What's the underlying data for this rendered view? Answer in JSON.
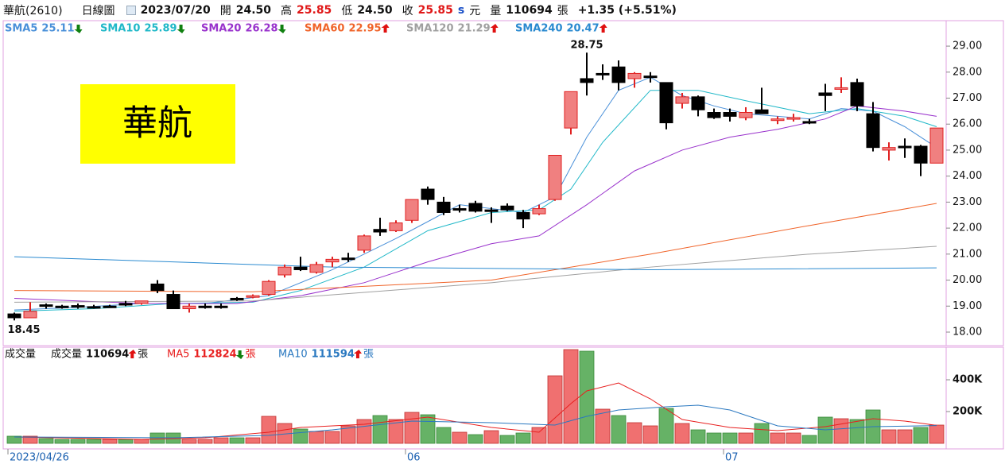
{
  "header": {
    "name": "華航(2610)",
    "period": "日線圖",
    "date": "2023/07/20",
    "open_label": "開",
    "open": "24.50",
    "high_label": "高",
    "high": "25.85",
    "low_label": "低",
    "low": "24.50",
    "close_label": "收",
    "close": "25.85",
    "s": "s",
    "currency": "元",
    "volume_label": "量",
    "volume": "110694",
    "volume_unit": "張",
    "change": "+1.35 (+5.51%)"
  },
  "badge": "華航",
  "chart_data": [
    {
      "type": "candlestick",
      "open": [
        18.7,
        18.55,
        19.05,
        19.0,
        19.02,
        18.98,
        19.0,
        19.1,
        19.1,
        19.85,
        19.45,
        18.9,
        19.0,
        19.0,
        19.3,
        19.35,
        19.45,
        20.2,
        20.5,
        20.3,
        20.7,
        20.85,
        21.15,
        21.95,
        21.9,
        22.3,
        23.5,
        23.0,
        22.75,
        22.95,
        22.7,
        22.85,
        22.6,
        22.55,
        23.1,
        25.85,
        27.75,
        27.95,
        28.2,
        27.75,
        27.85,
        27.6,
        26.8,
        27.05,
        26.45,
        26.45,
        26.25,
        26.55,
        26.15,
        26.2,
        26.1,
        27.2,
        27.35,
        27.6,
        26.4,
        25.0,
        25.15,
        25.15,
        24.5
      ],
      "high": [
        18.75,
        19.15,
        19.1,
        19.05,
        19.1,
        19.05,
        19.05,
        19.2,
        19.2,
        20.0,
        19.6,
        19.1,
        19.1,
        19.1,
        19.35,
        19.45,
        20.0,
        20.6,
        20.9,
        20.7,
        20.9,
        21.05,
        21.75,
        22.4,
        22.3,
        23.1,
        23.6,
        23.2,
        22.9,
        23.05,
        22.8,
        22.95,
        22.7,
        22.9,
        24.8,
        27.25,
        28.75,
        28.3,
        28.45,
        28.0,
        28.0,
        27.6,
        27.2,
        27.1,
        26.6,
        26.6,
        26.65,
        27.4,
        26.3,
        26.4,
        26.2,
        27.55,
        27.8,
        27.75,
        26.85,
        25.3,
        25.45,
        25.2,
        25.85
      ],
      "low": [
        18.45,
        18.55,
        18.9,
        18.9,
        18.9,
        18.9,
        18.95,
        19.0,
        19.05,
        19.5,
        18.9,
        18.75,
        18.9,
        18.9,
        19.2,
        19.3,
        19.4,
        20.1,
        20.35,
        20.25,
        20.5,
        20.7,
        21.05,
        21.7,
        21.85,
        22.2,
        22.9,
        22.5,
        22.6,
        22.6,
        22.2,
        22.65,
        22.0,
        22.5,
        23.05,
        25.6,
        27.1,
        27.7,
        27.3,
        27.4,
        27.6,
        25.8,
        26.6,
        26.3,
        26.2,
        26.1,
        26.15,
        26.4,
        26.0,
        26.1,
        26.0,
        26.5,
        27.2,
        26.5,
        24.95,
        24.6,
        24.7,
        24.0,
        24.5
      ],
      "close": [
        18.55,
        18.8,
        19.0,
        18.98,
        19.0,
        18.97,
        19.0,
        19.05,
        19.2,
        19.6,
        18.9,
        19.0,
        19.0,
        19.0,
        19.25,
        19.4,
        19.95,
        20.5,
        20.4,
        20.6,
        20.8,
        20.85,
        21.7,
        21.85,
        22.2,
        23.1,
        23.1,
        22.6,
        22.75,
        22.65,
        22.7,
        22.7,
        22.35,
        22.75,
        24.8,
        27.25,
        27.6,
        27.95,
        27.6,
        27.95,
        27.85,
        26.05,
        27.05,
        26.55,
        26.25,
        26.3,
        26.45,
        26.4,
        26.2,
        26.25,
        26.05,
        27.1,
        27.4,
        26.7,
        25.1,
        25.1,
        25.15,
        24.5,
        25.85
      ],
      "up_color": "#f08080",
      "up_edge": "#e02020",
      "down_color": "#000000",
      "ylim": [
        17.48,
        29.98
      ],
      "yticks": [
        {
          "value": 18,
          "label": "18.00"
        },
        {
          "value": 19,
          "label": "19.00"
        },
        {
          "value": 20,
          "label": "20.00"
        },
        {
          "value": 21,
          "label": "21.00"
        },
        {
          "value": 22,
          "label": "22.00"
        },
        {
          "value": 23,
          "label": "23.00"
        },
        {
          "value": 24,
          "label": "24.00"
        },
        {
          "value": 25,
          "label": "25.00"
        },
        {
          "value": 26,
          "label": "26.00"
        },
        {
          "value": 27,
          "label": "27.00"
        },
        {
          "value": 28,
          "label": "28.00"
        },
        {
          "value": 29,
          "label": "29.00"
        }
      ],
      "annotations": [
        {
          "label": "28.75",
          "value": 28.75,
          "index": 36,
          "position": "above"
        },
        {
          "label": "18.45",
          "value": 18.45,
          "index": 0,
          "position": "below"
        }
      ],
      "series": [
        {
          "name": "SMA5",
          "last": 25.11,
          "trend": "down",
          "color": "#4a90d9",
          "x": [
            0,
            4,
            8,
            12,
            16,
            20,
            24,
            28,
            32,
            34,
            36,
            38,
            40,
            42,
            44,
            46,
            48,
            50,
            52,
            54,
            56,
            58
          ],
          "values": [
            18.85,
            18.95,
            19.1,
            19.1,
            19.4,
            20.4,
            21.6,
            22.9,
            22.6,
            23.2,
            25.5,
            27.3,
            27.8,
            27.1,
            26.7,
            26.4,
            26.3,
            26.2,
            26.6,
            26.5,
            25.9,
            25.1
          ]
        },
        {
          "name": "SMA10",
          "last": 25.89,
          "trend": "down",
          "color": "#20b8c8",
          "x": [
            0,
            5,
            10,
            15,
            18,
            22,
            26,
            30,
            33,
            35,
            37,
            40,
            43,
            46,
            50,
            53,
            56,
            58
          ],
          "values": [
            18.8,
            18.9,
            19.1,
            19.15,
            19.6,
            20.5,
            21.9,
            22.6,
            22.7,
            23.5,
            25.3,
            27.3,
            27.3,
            26.9,
            26.4,
            26.6,
            26.3,
            25.9
          ]
        },
        {
          "name": "SMA20",
          "last": 26.28,
          "trend": "down",
          "color": "#9932cc",
          "x": [
            0,
            8,
            14,
            18,
            22,
            26,
            30,
            33,
            36,
            39,
            42,
            45,
            48,
            51,
            53,
            56,
            58
          ],
          "values": [
            19.3,
            19.1,
            19.1,
            19.4,
            19.9,
            20.7,
            21.4,
            21.7,
            22.9,
            24.2,
            25.0,
            25.5,
            25.8,
            26.2,
            26.7,
            26.5,
            26.3
          ]
        },
        {
          "name": "SMA60",
          "last": 22.95,
          "trend": "up",
          "color": "#f0642a",
          "x": [
            0,
            15,
            30,
            40,
            50,
            58
          ],
          "values": [
            19.6,
            19.55,
            20.0,
            21.0,
            22.1,
            22.95
          ]
        },
        {
          "name": "SMA120",
          "last": 21.29,
          "trend": "up",
          "color": "#a0a0a0",
          "x": [
            0,
            15,
            30,
            40,
            50,
            58
          ],
          "values": [
            19.15,
            19.2,
            19.9,
            20.5,
            21.0,
            21.3
          ]
        },
        {
          "name": "SMA240",
          "last": 20.47,
          "trend": "up",
          "color": "#2a8ad0",
          "x": [
            0,
            20,
            40,
            58
          ],
          "values": [
            20.9,
            20.5,
            20.4,
            20.47
          ]
        }
      ]
    },
    {
      "type": "volume",
      "label": "成交量",
      "values": [
        45000,
        45000,
        30000,
        25000,
        25000,
        25000,
        25000,
        25000,
        25000,
        65000,
        65000,
        25000,
        25000,
        35000,
        35000,
        35000,
        170000,
        125000,
        90000,
        75000,
        75000,
        110000,
        150000,
        175000,
        150000,
        195000,
        180000,
        100000,
        70000,
        55000,
        80000,
        50000,
        65000,
        100000,
        425000,
        590000,
        580000,
        215000,
        175000,
        130000,
        110000,
        220000,
        125000,
        85000,
        65000,
        65000,
        65000,
        125000,
        65000,
        65000,
        50000,
        165000,
        155000,
        150000,
        210000,
        85000,
        85000,
        100000,
        115000
      ],
      "up_color": "#f07070",
      "up_edge": "#c03030",
      "down_color": "#66b266",
      "down_edge": "#3a8a3a",
      "ylim": [
        0,
        605000
      ],
      "yticks": [
        {
          "value": 200000,
          "label": "200K"
        },
        {
          "value": 400000,
          "label": "400K"
        }
      ],
      "legend": {
        "name": "成交量",
        "last": 110694,
        "trend": "up",
        "unit": "張",
        "color": "#111111"
      },
      "series": [
        {
          "name": "MA5",
          "last": 112824,
          "trend": "down",
          "unit": "張",
          "color": "#e82020",
          "x": [
            0,
            8,
            12,
            16,
            18,
            22,
            26,
            30,
            33,
            35,
            36,
            38,
            40,
            42,
            45,
            48,
            51,
            54,
            56,
            58
          ],
          "values": [
            40000,
            25000,
            35000,
            70000,
            100000,
            120000,
            165000,
            100000,
            70000,
            250000,
            330000,
            380000,
            280000,
            150000,
            100000,
            80000,
            105000,
            155000,
            140000,
            113000
          ]
        },
        {
          "name": "MA10",
          "last": 111594,
          "trend": "up",
          "unit": "張",
          "color": "#2a78c0",
          "x": [
            0,
            10,
            16,
            20,
            25,
            30,
            34,
            36,
            38,
            41,
            43,
            45,
            48,
            51,
            54,
            58
          ],
          "values": [
            40000,
            35000,
            50000,
            85000,
            140000,
            130000,
            115000,
            170000,
            210000,
            230000,
            240000,
            210000,
            110000,
            85000,
            105000,
            112000
          ]
        }
      ],
      "date_labels": [
        {
          "index": 0,
          "label": "2023/04/26"
        },
        {
          "index": 25,
          "label": "06"
        },
        {
          "index": 45,
          "label": "07"
        }
      ]
    }
  ]
}
